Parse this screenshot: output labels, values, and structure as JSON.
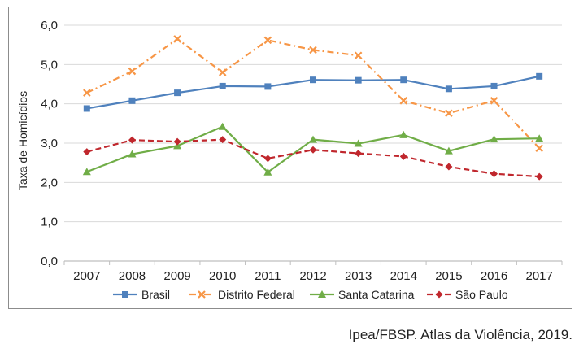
{
  "chart_data": {
    "type": "line",
    "title": "",
    "xlabel": "",
    "ylabel": "Taxa de Homicídios",
    "x": [
      "2007",
      "2008",
      "2009",
      "2010",
      "2011",
      "2012",
      "2013",
      "2014",
      "2015",
      "2016",
      "2017"
    ],
    "yticks": [
      "0,0",
      "1,0",
      "2,0",
      "3,0",
      "4,0",
      "5,0",
      "6,0"
    ],
    "ylim": [
      0,
      6
    ],
    "grid": true,
    "legend_position": "bottom",
    "series": [
      {
        "name": "Brasil",
        "color": "#4f81bd",
        "marker": "square",
        "dash": "solid",
        "values": [
          3.88,
          4.08,
          4.28,
          4.45,
          4.44,
          4.61,
          4.6,
          4.61,
          4.38,
          4.45,
          4.7
        ]
      },
      {
        "name": "Distrito Federal",
        "color": "#f79646",
        "marker": "x",
        "dash": "dashdot",
        "values": [
          4.28,
          4.83,
          5.65,
          4.8,
          5.62,
          5.37,
          5.23,
          4.08,
          3.76,
          4.08,
          2.87
        ]
      },
      {
        "name": "Santa Catarina",
        "color": "#70ad47",
        "marker": "triangle",
        "dash": "solid",
        "values": [
          2.27,
          2.72,
          2.93,
          3.42,
          2.26,
          3.09,
          2.99,
          3.21,
          2.8,
          3.1,
          3.12
        ]
      },
      {
        "name": "São Paulo",
        "color": "#c0272d",
        "marker": "diamond",
        "dash": "dashed",
        "values": [
          2.78,
          3.08,
          3.04,
          3.09,
          2.61,
          2.83,
          2.74,
          2.66,
          2.4,
          2.22,
          2.15
        ]
      }
    ]
  },
  "source": "Ipea/FBSP. Atlas da Violência, 2019."
}
